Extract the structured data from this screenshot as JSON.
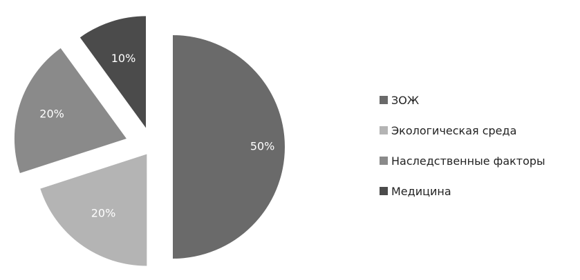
{
  "chart_data": {
    "type": "pie",
    "exploded": true,
    "legend_position": "right",
    "slices": [
      {
        "name": "ЗОЖ",
        "value": 50,
        "label": "50%",
        "color": "#6a6a6a"
      },
      {
        "name": "Экологическая среда",
        "value": 20,
        "label": "20%",
        "color": "#b4b4b4"
      },
      {
        "name": "Наследственные факторы",
        "value": 20,
        "label": "20%",
        "color": "#8a8a8a"
      },
      {
        "name": "Медицина",
        "value": 10,
        "label": "10%",
        "color": "#4b4b4b"
      }
    ]
  }
}
